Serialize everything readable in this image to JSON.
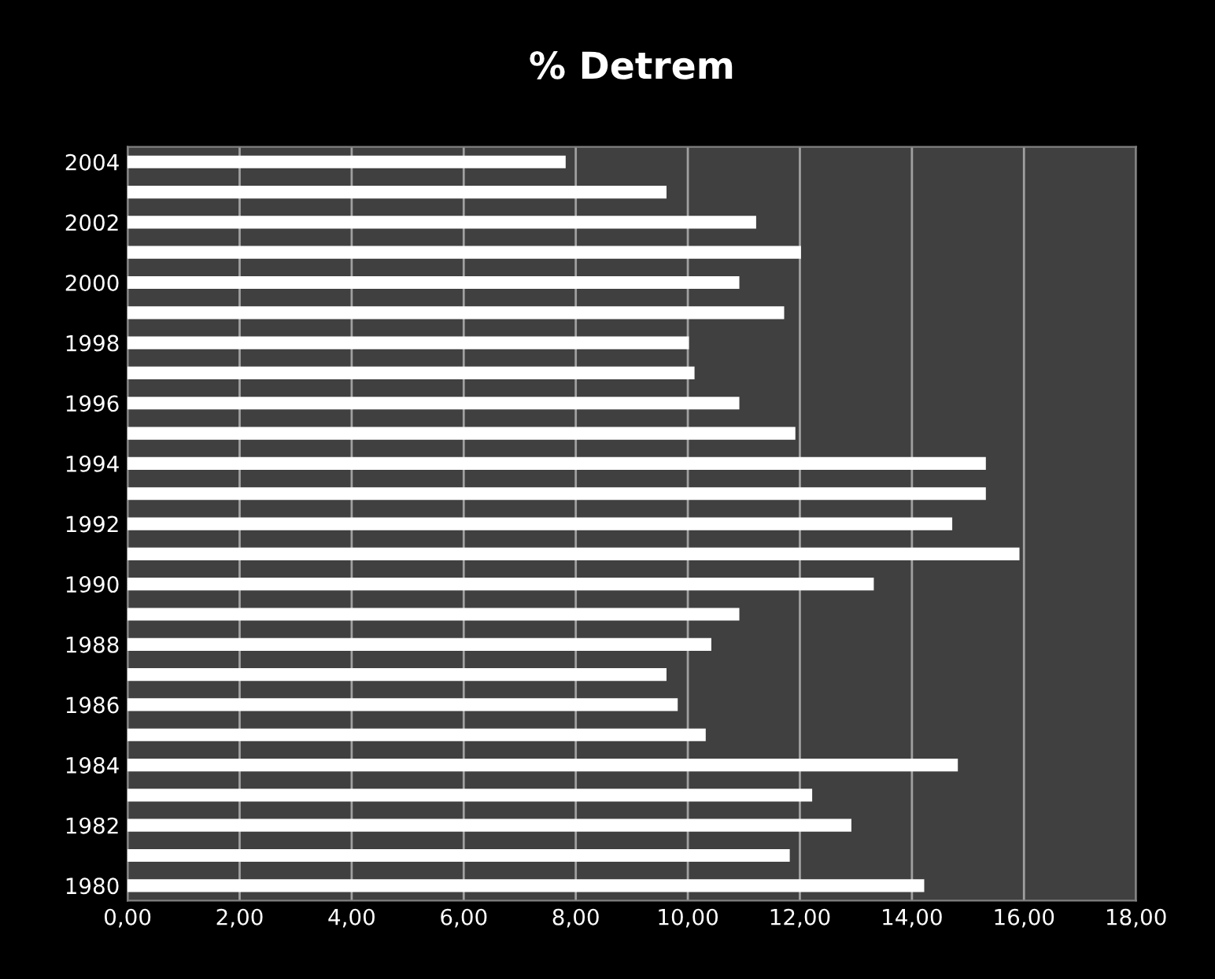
{
  "chart_data": {
    "type": "bar",
    "orientation": "horizontal",
    "title": "% Detrem",
    "categories": [
      "2004",
      null,
      "2002",
      null,
      "2000",
      null,
      "1998",
      null,
      "1996",
      null,
      "1994",
      null,
      "1992",
      null,
      "1990",
      null,
      "1988",
      null,
      "1986",
      null,
      "1984",
      null,
      "1982",
      null,
      "1980"
    ],
    "values": [
      7.8,
      9.6,
      11.2,
      12.0,
      10.9,
      11.7,
      10.0,
      10.1,
      10.9,
      11.9,
      15.3,
      15.3,
      14.7,
      15.9,
      13.3,
      10.9,
      10.4,
      9.6,
      9.8,
      10.3,
      14.8,
      12.2,
      12.9,
      11.8,
      14.2
    ],
    "color": "#ffffff",
    "xlim": [
      0,
      18
    ],
    "xticks": [
      {
        "value": 0,
        "label": "0,00"
      },
      {
        "value": 2,
        "label": "2,00"
      },
      {
        "value": 4,
        "label": "4,00"
      },
      {
        "value": 6,
        "label": "6,00"
      },
      {
        "value": 8,
        "label": "8,00"
      },
      {
        "value": 10,
        "label": "10,00"
      },
      {
        "value": 12,
        "label": "12,00"
      },
      {
        "value": 14,
        "label": "14,00"
      },
      {
        "value": 16,
        "label": "16,00"
      },
      {
        "value": 18,
        "label": "18,00"
      }
    ],
    "grid": "x",
    "legend": false
  }
}
